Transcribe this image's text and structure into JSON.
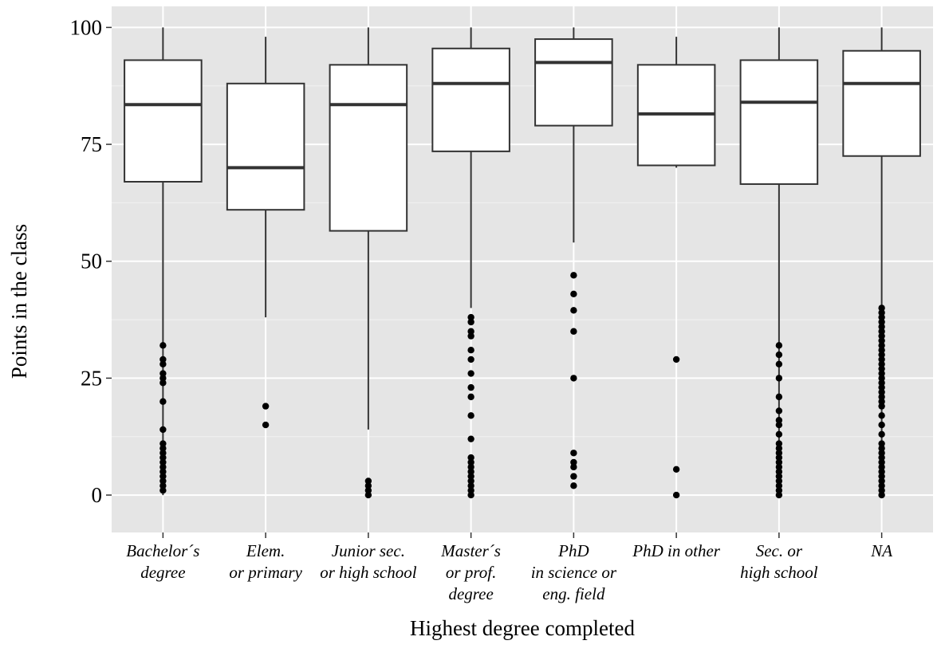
{
  "chart_data": {
    "type": "boxplot",
    "xlabel": "Highest degree completed",
    "ylabel": "Points in the class",
    "ylim": [
      -8,
      104.5
    ],
    "y_ticks": [
      0,
      25,
      50,
      75,
      100
    ],
    "y_tick_labels": [
      "0",
      "25",
      "50",
      "75",
      "100"
    ],
    "grid": true,
    "categories": [
      {
        "lines": [
          "Bachelor´s",
          "degree"
        ],
        "min": 0,
        "q1": 67,
        "median": 83.5,
        "q3": 93,
        "max": 100,
        "outliers": [
          1,
          2,
          3,
          4,
          5,
          6,
          7,
          8,
          9,
          10,
          11,
          14,
          20,
          24,
          25,
          26,
          28,
          29,
          32
        ]
      },
      {
        "lines": [
          "Elem.",
          "or primary"
        ],
        "min": 38,
        "q1": 61,
        "median": 70,
        "q3": 88,
        "max": 98,
        "outliers": [
          15,
          19
        ]
      },
      {
        "lines": [
          "Junior sec.",
          "or high school"
        ],
        "min": 14,
        "q1": 56.5,
        "median": 83.5,
        "q3": 92,
        "max": 100,
        "outliers": [
          0,
          1,
          2,
          3
        ]
      },
      {
        "lines": [
          "Master´s",
          "or prof.",
          "degree"
        ],
        "min": 40,
        "q1": 73.5,
        "median": 88,
        "q3": 95.5,
        "max": 100,
        "outliers": [
          0,
          1,
          2,
          3,
          4,
          5,
          6,
          7,
          8,
          12,
          17,
          21,
          23,
          26,
          29,
          31,
          34,
          35,
          37,
          38
        ]
      },
      {
        "lines": [
          "PhD",
          "in science or",
          "eng. field"
        ],
        "min": 54,
        "q1": 79,
        "median": 92.5,
        "q3": 97.5,
        "max": 100,
        "outliers": [
          2,
          4,
          6,
          7,
          9,
          25,
          35,
          39.5,
          43,
          47
        ]
      },
      {
        "lines": [
          "PhD in other"
        ],
        "min": 70,
        "q1": 70.5,
        "median": 81.5,
        "q3": 92,
        "max": 98,
        "outliers": [
          0,
          5.5,
          29
        ]
      },
      {
        "lines": [
          "Sec. or",
          "high school"
        ],
        "min": 0,
        "q1": 66.5,
        "median": 84,
        "q3": 93,
        "max": 100,
        "outliers": [
          0,
          1,
          2,
          3,
          4,
          5,
          6,
          7,
          8,
          9,
          10,
          11,
          13,
          15,
          16,
          18,
          21,
          25,
          28,
          30,
          32
        ]
      },
      {
        "lines": [
          "NA"
        ],
        "min": 0,
        "q1": 72.5,
        "median": 88,
        "q3": 95,
        "max": 100,
        "outliers": [
          0,
          1,
          2,
          3,
          4,
          5,
          6,
          7,
          8,
          9,
          10,
          11,
          13,
          15,
          17,
          19,
          20,
          21,
          22,
          23,
          24,
          25,
          26,
          27,
          28,
          29,
          30,
          31,
          32,
          33,
          34,
          35,
          36,
          37,
          38,
          39,
          40
        ]
      }
    ]
  }
}
